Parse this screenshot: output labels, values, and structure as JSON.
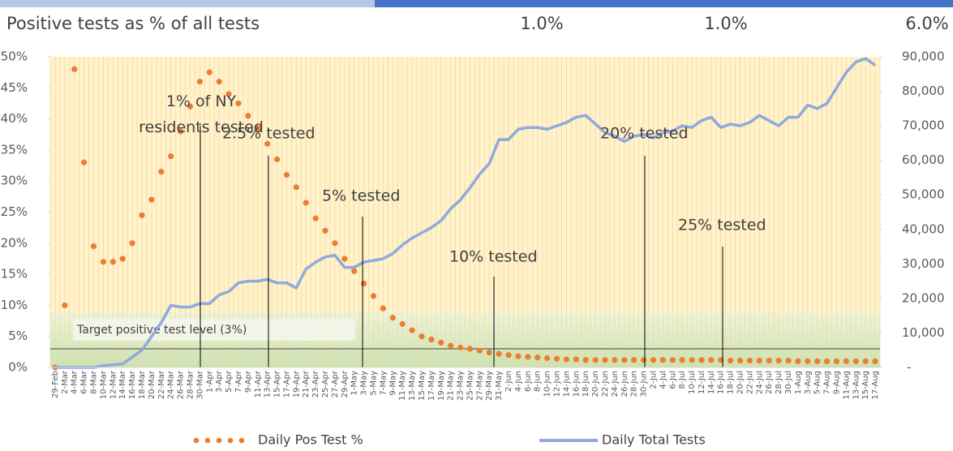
{
  "chart_data": {
    "type": "combo",
    "title": "Positive tests as % of all tests",
    "header_values": [
      "1.0%",
      "1.0%",
      "6.0%"
    ],
    "annotations": [
      "1% of NY residents tested",
      "2.5% tested",
      "5% tested",
      "10% tested",
      "20% tested",
      "25% tested"
    ],
    "target_label": "Target positive test level (3%)",
    "target": 3,
    "categories": [
      "29-Feb",
      "2-Mar",
      "4-Mar",
      "6-Mar",
      "8-Mar",
      "10-Mar",
      "12-Mar",
      "14-Mar",
      "16-Mar",
      "18-Mar",
      "20-Mar",
      "22-Mar",
      "24-Mar",
      "26-Mar",
      "28-Mar",
      "30-Mar",
      "1-Apr",
      "3-Apr",
      "5-Apr",
      "7-Apr",
      "9-Apr",
      "11-Apr",
      "13-Apr",
      "15-Apr",
      "17-Apr",
      "19-Apr",
      "21-Apr",
      "23-Apr",
      "25-Apr",
      "27-Apr",
      "29-Apr",
      "1-May",
      "3-May",
      "5-May",
      "7-May",
      "9-May",
      "11-May",
      "13-May",
      "15-May",
      "17-May",
      "19-May",
      "21-May",
      "23-May",
      "25-May",
      "27-May",
      "29-May",
      "31-May",
      "2-Jun",
      "4-Jun",
      "6-Jun",
      "8-Jun",
      "10-Jun",
      "12-Jun",
      "14-Jun",
      "16-Jun",
      "18-Jun",
      "20-Jun",
      "22-Jun",
      "24-Jun",
      "26-Jun",
      "28-Jun",
      "30-Jun",
      "2-Jul",
      "4-Jul",
      "6-Jul",
      "8-Jul",
      "10-Jul",
      "12-Jul",
      "14-Jul",
      "16-Jul",
      "18-Jul",
      "20-Jul",
      "22-Jul",
      "24-Jul",
      "26-Jul",
      "28-Jul",
      "30-Jul",
      "1-Aug",
      "3-Aug",
      "5-Aug",
      "7-Aug",
      "9-Aug",
      "11-Aug",
      "13-Aug",
      "15-Aug",
      "17-Aug"
    ],
    "series": [
      {
        "name": "Daily Pos Test %",
        "color": "#ED7D31",
        "axis": "y",
        "values": [
          0,
          10,
          48,
          33,
          19.5,
          17,
          17,
          17.5,
          20,
          24.5,
          27,
          31.5,
          34,
          38,
          42,
          46,
          47.5,
          46,
          44,
          42.5,
          40.5,
          38.5,
          36,
          33.5,
          31,
          29,
          26.5,
          24,
          22,
          20,
          17.5,
          15.5,
          13.5,
          11.5,
          9.5,
          8,
          7,
          6,
          5,
          4.5,
          4,
          3.5,
          3.2,
          3,
          2.7,
          2.4,
          2.2,
          2,
          1.8,
          1.7,
          1.6,
          1.5,
          1.4,
          1.3,
          1.3,
          1.2,
          1.2,
          1.2,
          1.2,
          1.2,
          1.2,
          1.2,
          1.2,
          1.2,
          1.2,
          1.2,
          1.2,
          1.2,
          1.2,
          1.2,
          1.1,
          1.1,
          1.1,
          1.1,
          1.1,
          1.1,
          1.1,
          1,
          1,
          1,
          1,
          1,
          1,
          1,
          1,
          1
        ]
      },
      {
        "name": "Daily Total Tests",
        "color": "#8FAADC",
        "axis": "y2",
        "values": [
          0,
          0,
          0,
          0,
          0,
          500,
          800,
          1000,
          3000,
          5000,
          9000,
          13000,
          18000,
          17500,
          17500,
          18500,
          18500,
          21000,
          22000,
          24500,
          25000,
          25000,
          25500,
          24500,
          24500,
          23000,
          28500,
          30500,
          32000,
          32500,
          29000,
          29000,
          30500,
          31000,
          31500,
          33000,
          35500,
          37500,
          39000,
          40500,
          42500,
          46000,
          48500,
          52000,
          56000,
          59000,
          66000,
          66000,
          69000,
          69500,
          69500,
          69000,
          70000,
          71000,
          72500,
          73000,
          70500,
          68000,
          67000,
          65500,
          67000,
          67500,
          66500,
          68000,
          68500,
          70000,
          69500,
          71500,
          72500,
          69500,
          70500,
          70000,
          71000,
          73000,
          71500,
          70000,
          72500,
          72500,
          76000,
          75000,
          76500,
          81000,
          85500,
          88500,
          89500,
          87500
        ]
      }
    ],
    "ylim": [
      0,
      50
    ],
    "yticks": [
      {
        "value": 0,
        "label": "0%"
      },
      {
        "value": 5,
        "label": "5%"
      },
      {
        "value": 10,
        "label": "10%"
      },
      {
        "value": 15,
        "label": "15%"
      },
      {
        "value": 20,
        "label": "20%"
      },
      {
        "value": 25,
        "label": "25%"
      },
      {
        "value": 30,
        "label": "30%"
      },
      {
        "value": 35,
        "label": "35%"
      },
      {
        "value": 40,
        "label": "40%"
      },
      {
        "value": 45,
        "label": "45%"
      },
      {
        "value": 50,
        "label": "50%"
      }
    ],
    "y2lim": [
      0,
      90000
    ],
    "y2ticks": [
      {
        "value": 0,
        "label": "-"
      },
      {
        "value": 10000,
        "label": "10,000"
      },
      {
        "value": 20000,
        "label": "20,000"
      },
      {
        "value": 30000,
        "label": "30,000"
      },
      {
        "value": 40000,
        "label": "40,000"
      },
      {
        "value": 50000,
        "label": "50,000"
      },
      {
        "value": 60000,
        "label": "60,000"
      },
      {
        "value": 70000,
        "label": "70,000"
      },
      {
        "value": 80000,
        "label": "80,000"
      },
      {
        "value": 90000,
        "label": "90,000"
      }
    ]
  }
}
